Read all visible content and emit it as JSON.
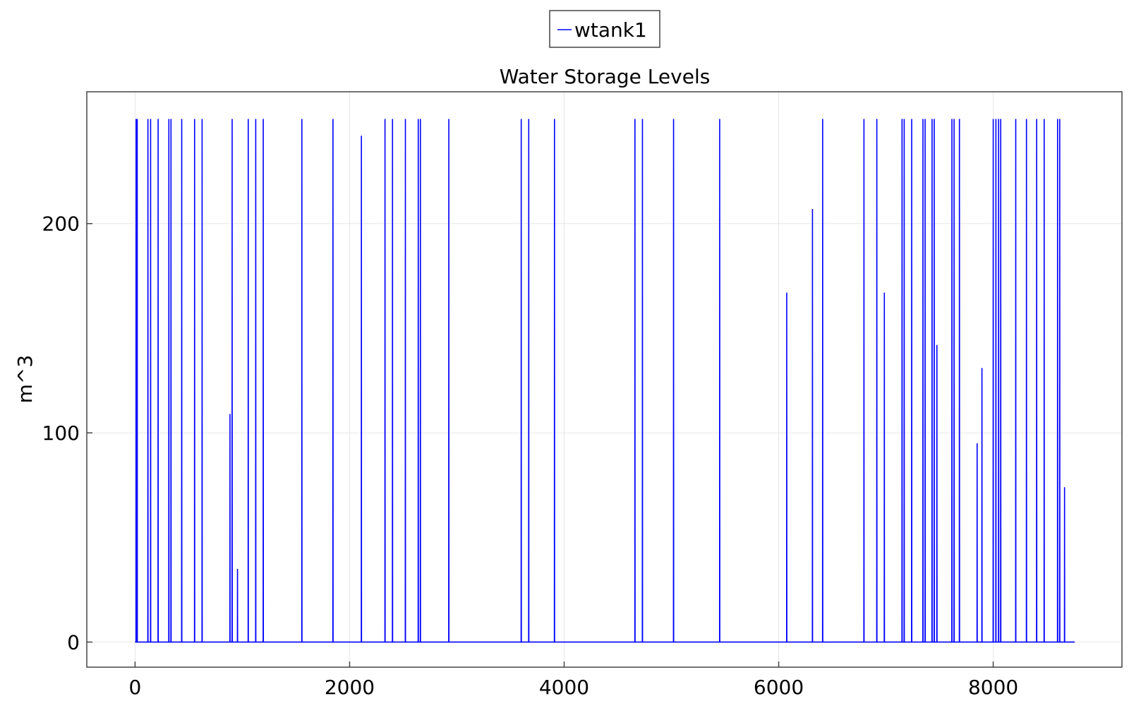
{
  "chart_data": {
    "type": "line",
    "title": "Water Storage Levels",
    "xlabel": "",
    "ylabel": "m^3",
    "xlim": [
      -450,
      9200
    ],
    "ylim": [
      -12,
      263
    ],
    "xticks": [
      0,
      2000,
      4000,
      6000,
      8000
    ],
    "yticks": [
      0,
      100,
      200
    ],
    "grid": true,
    "legend_position": "top-center",
    "series": [
      {
        "name": "wtank1",
        "color": "#0000ff",
        "baseline": 0,
        "x_end": 8760,
        "spikes": [
          {
            "x": 10,
            "y": 250
          },
          {
            "x": 20,
            "y": 250
          },
          {
            "x": 120,
            "y": 250
          },
          {
            "x": 145,
            "y": 250
          },
          {
            "x": 215,
            "y": 250
          },
          {
            "x": 315,
            "y": 250
          },
          {
            "x": 335,
            "y": 250
          },
          {
            "x": 435,
            "y": 250
          },
          {
            "x": 555,
            "y": 250
          },
          {
            "x": 625,
            "y": 250
          },
          {
            "x": 885,
            "y": 109
          },
          {
            "x": 905,
            "y": 250
          },
          {
            "x": 955,
            "y": 35
          },
          {
            "x": 1055,
            "y": 250
          },
          {
            "x": 1125,
            "y": 250
          },
          {
            "x": 1195,
            "y": 250
          },
          {
            "x": 1555,
            "y": 250
          },
          {
            "x": 1845,
            "y": 250
          },
          {
            "x": 2110,
            "y": 242
          },
          {
            "x": 2330,
            "y": 250
          },
          {
            "x": 2400,
            "y": 250
          },
          {
            "x": 2520,
            "y": 250
          },
          {
            "x": 2640,
            "y": 250
          },
          {
            "x": 2660,
            "y": 250
          },
          {
            "x": 2925,
            "y": 250
          },
          {
            "x": 3600,
            "y": 250
          },
          {
            "x": 3670,
            "y": 250
          },
          {
            "x": 3910,
            "y": 250
          },
          {
            "x": 4660,
            "y": 250
          },
          {
            "x": 4730,
            "y": 250
          },
          {
            "x": 5020,
            "y": 250
          },
          {
            "x": 5450,
            "y": 250
          },
          {
            "x": 6075,
            "y": 167
          },
          {
            "x": 6315,
            "y": 207
          },
          {
            "x": 6410,
            "y": 250
          },
          {
            "x": 6795,
            "y": 250
          },
          {
            "x": 6915,
            "y": 250
          },
          {
            "x": 6985,
            "y": 167
          },
          {
            "x": 7150,
            "y": 250
          },
          {
            "x": 7170,
            "y": 250
          },
          {
            "x": 7240,
            "y": 250
          },
          {
            "x": 7345,
            "y": 250
          },
          {
            "x": 7365,
            "y": 250
          },
          {
            "x": 7430,
            "y": 250
          },
          {
            "x": 7450,
            "y": 250
          },
          {
            "x": 7475,
            "y": 142
          },
          {
            "x": 7615,
            "y": 250
          },
          {
            "x": 7635,
            "y": 250
          },
          {
            "x": 7685,
            "y": 250
          },
          {
            "x": 7850,
            "y": 95
          },
          {
            "x": 7895,
            "y": 131
          },
          {
            "x": 8000,
            "y": 250
          },
          {
            "x": 8025,
            "y": 250
          },
          {
            "x": 8050,
            "y": 250
          },
          {
            "x": 8070,
            "y": 250
          },
          {
            "x": 8210,
            "y": 250
          },
          {
            "x": 8310,
            "y": 250
          },
          {
            "x": 8405,
            "y": 250
          },
          {
            "x": 8475,
            "y": 250
          },
          {
            "x": 8600,
            "y": 250
          },
          {
            "x": 8620,
            "y": 250
          },
          {
            "x": 8665,
            "y": 74
          }
        ]
      }
    ]
  }
}
